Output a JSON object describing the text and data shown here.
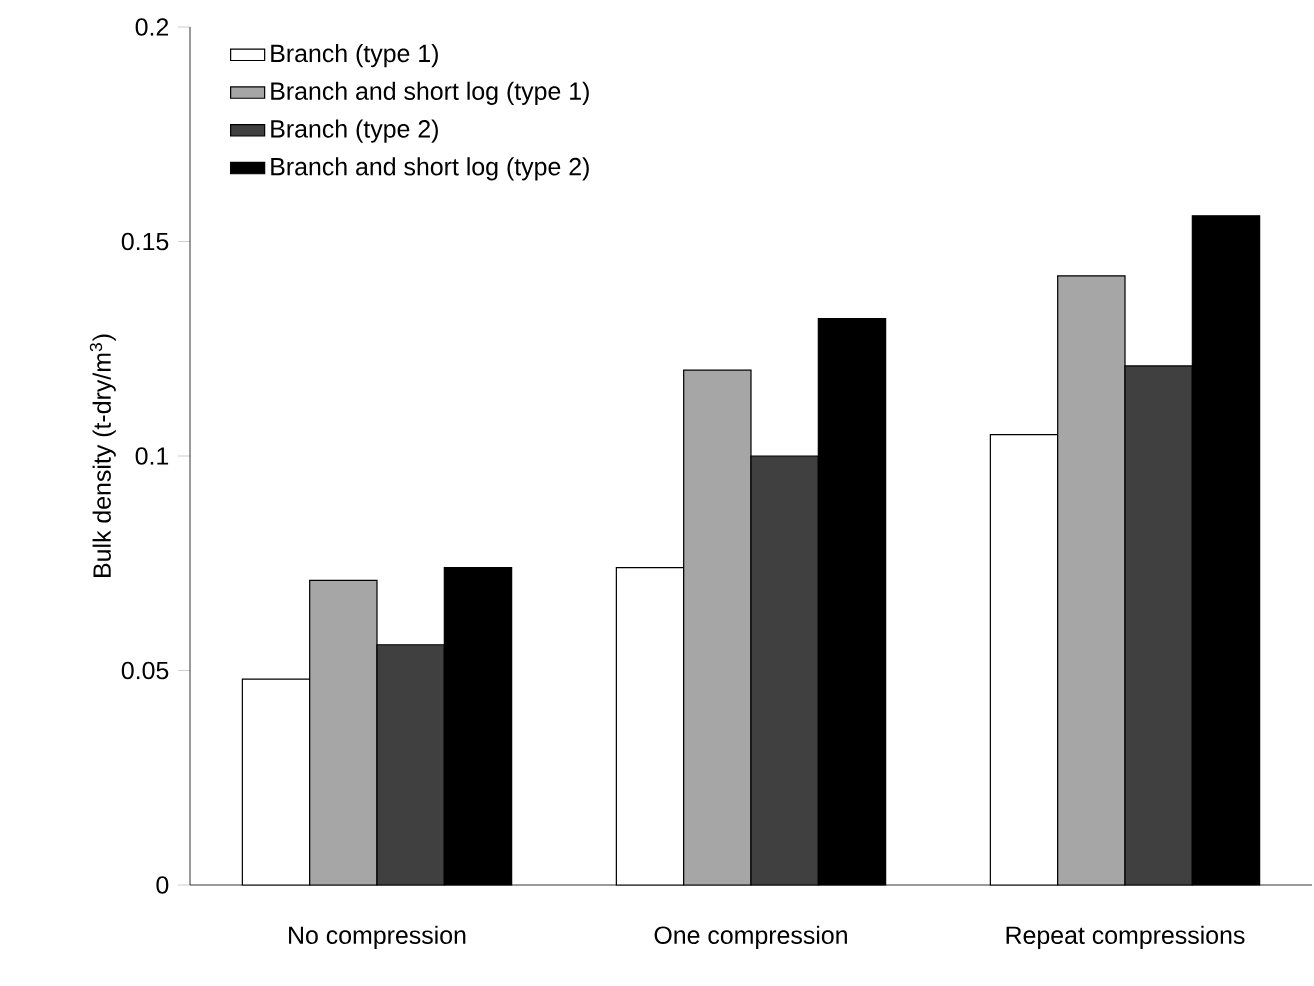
{
  "chart_data": {
    "type": "bar",
    "ylabel": "Bulk density (t-dry/m$^{3}$)",
    "categories": [
      "No compression",
      "One compression",
      "Repeat compressions"
    ],
    "series": [
      {
        "name": "Branch (type 1)",
        "color": "#ffffff",
        "values": [
          0.048,
          0.074,
          0.105
        ]
      },
      {
        "name": "Branch and short log (type 1)",
        "color": "#a6a6a6",
        "values": [
          0.071,
          0.12,
          0.142
        ]
      },
      {
        "name": "Branch (type 2)",
        "color": "#404040",
        "values": [
          0.056,
          0.1,
          0.121
        ]
      },
      {
        "name": "Branch and short log (type 2)",
        "color": "#000000",
        "values": [
          0.074,
          0.132,
          0.156
        ]
      }
    ],
    "ylim": [
      0,
      0.2
    ],
    "yticks": [
      0,
      0.05,
      0.1,
      0.15,
      0.2
    ],
    "legend": "top left"
  }
}
